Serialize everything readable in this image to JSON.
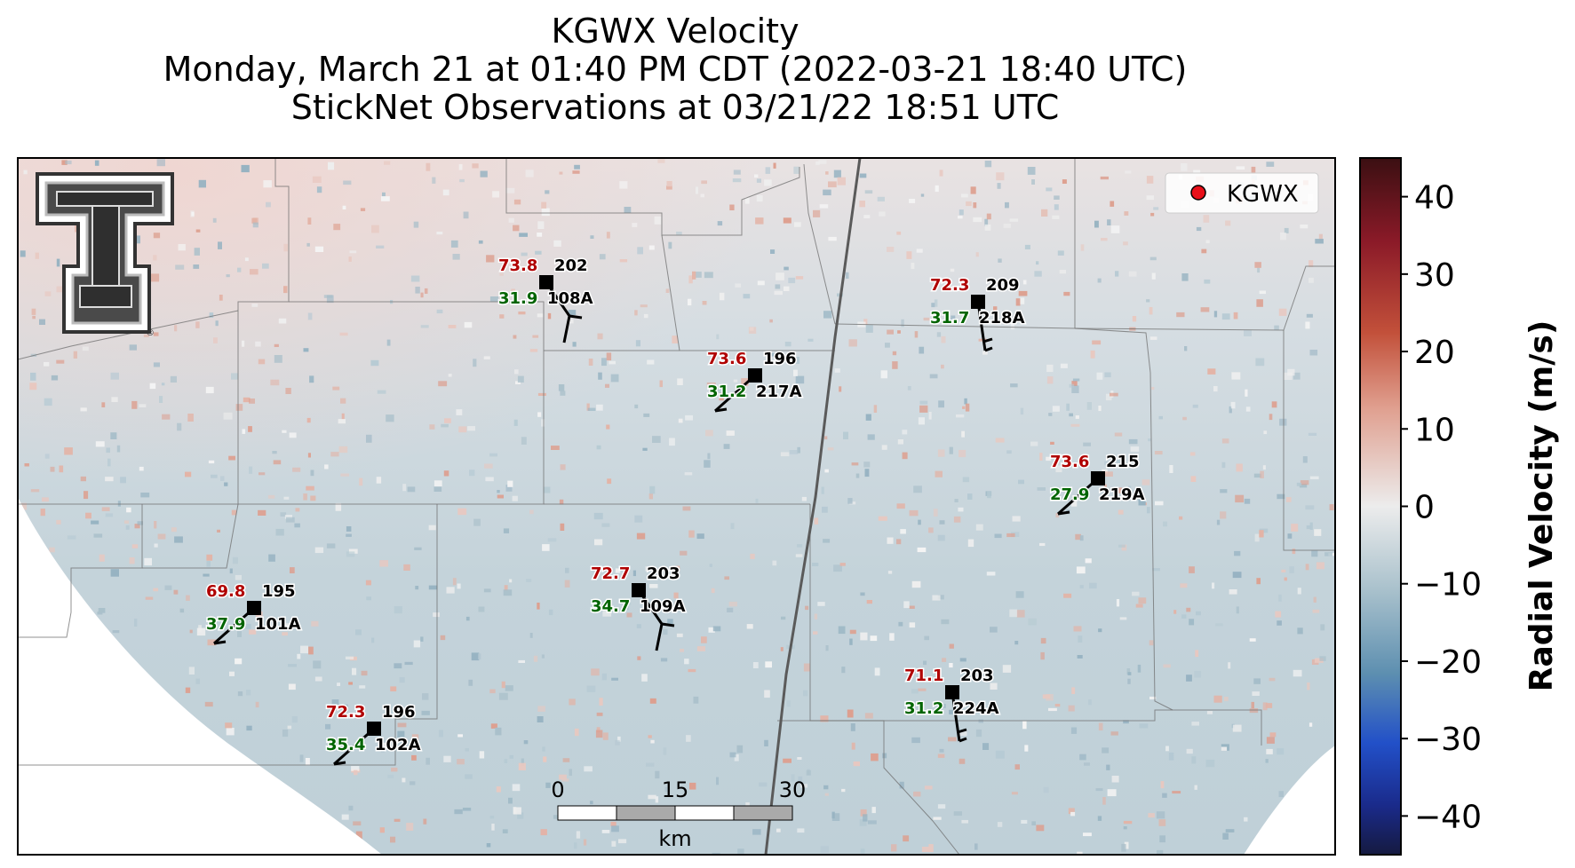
{
  "title": {
    "line1": "KGWX Velocity",
    "line2": "Monday, March 21 at 01:40 PM CDT (2022-03-21 18:40 UTC)",
    "line3": "StickNet Observations at 03/21/22 18:51 UTC"
  },
  "legend": {
    "label": "KGWX",
    "marker_color": "#e8101a"
  },
  "logo": {
    "name": "Texas Tech Double T",
    "registered": "®"
  },
  "colorbar": {
    "label": "Radial Velocity (m/s)",
    "ticks": [
      "40",
      "30",
      "20",
      "10",
      "0",
      "−10",
      "−20",
      "−30",
      "−40"
    ],
    "range": [
      -45,
      45
    ]
  },
  "scalebar": {
    "ticks": [
      "0",
      "15",
      "30"
    ],
    "unit": "km"
  },
  "stations": [
    {
      "id": "108A",
      "temp": "73.8",
      "dew": "31.9",
      "dir": "202",
      "barb": "two-full"
    },
    {
      "id": "217A",
      "temp": "73.6",
      "dew": "31.2",
      "dir": "196",
      "barb": "one-half"
    },
    {
      "id": "218A",
      "temp": "72.3",
      "dew": "31.7",
      "dir": "209",
      "barb": "half-half"
    },
    {
      "id": "219A",
      "temp": "73.6",
      "dew": "27.9",
      "dir": "215",
      "barb": "one-half"
    },
    {
      "id": "101A",
      "temp": "69.8",
      "dew": "37.9",
      "dir": "195",
      "barb": "one-half"
    },
    {
      "id": "109A",
      "temp": "72.7",
      "dew": "34.7",
      "dir": "203",
      "barb": "two-full"
    },
    {
      "id": "102A",
      "temp": "72.3",
      "dew": "35.4",
      "dir": "196",
      "barb": "one-half"
    },
    {
      "id": "224A",
      "temp": "71.1",
      "dew": "31.2",
      "dir": "203",
      "barb": "half-half"
    }
  ],
  "colors": {
    "temp": "#b00000",
    "dew": "#006400",
    "dir": "#000000",
    "radar_field": "#c4d3da"
  }
}
